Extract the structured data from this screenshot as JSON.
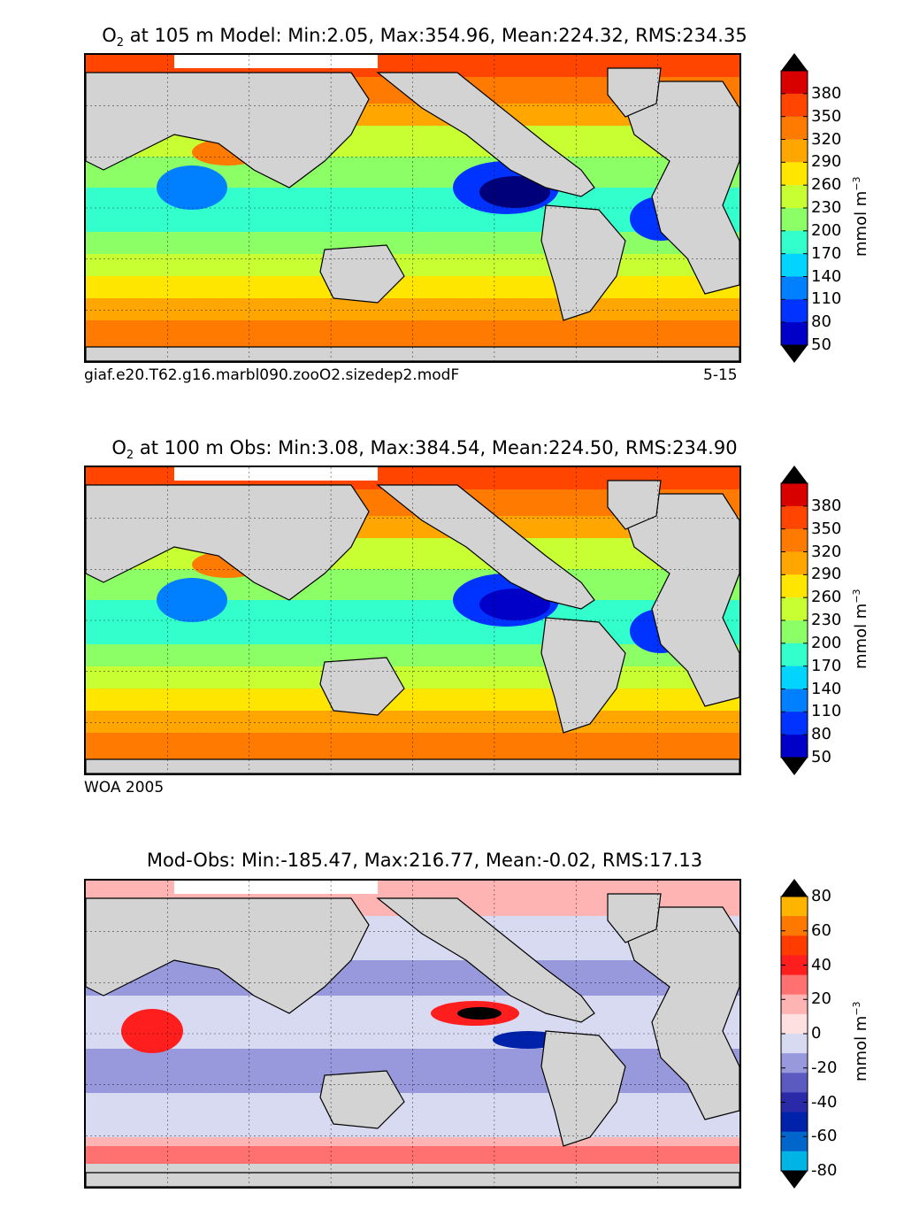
{
  "panels": [
    {
      "id": "model",
      "title_prefix": "O",
      "title_sub": "2",
      "title_rest": " at 105 m Model: Min:2.05, Max:354.96, Mean:224.32, RMS:234.35",
      "caption_left": "giaf.e20.T62.g16.marbl090.zooO2.sizedep2.modF",
      "caption_right": "5-15",
      "colorbar": {
        "ticks": [
          "380",
          "350",
          "320",
          "290",
          "260",
          "230",
          "200",
          "170",
          "140",
          "110",
          "80",
          "50"
        ],
        "unit_main": "mmol m",
        "unit_sup": "−3",
        "colors": [
          "#00007a",
          "#0000c8",
          "#0033ff",
          "#0080ff",
          "#00d4ff",
          "#33ffcc",
          "#8cff66",
          "#c8ff33",
          "#ffe600",
          "#ffa600",
          "#ff7a00",
          "#ff4500",
          "#d90000",
          "#800000"
        ]
      }
    },
    {
      "id": "obs",
      "title_prefix": "O",
      "title_sub": "2",
      "title_rest": " at 100 m Obs: Min:3.08, Max:384.54, Mean:224.50, RMS:234.90",
      "caption_left": "WOA 2005",
      "caption_right": "",
      "colorbar": {
        "ticks": [
          "380",
          "350",
          "320",
          "290",
          "260",
          "230",
          "200",
          "170",
          "140",
          "110",
          "80",
          "50"
        ],
        "unit_main": "mmol m",
        "unit_sup": "−3",
        "colors": [
          "#00007a",
          "#0000c8",
          "#0033ff",
          "#0080ff",
          "#00d4ff",
          "#33ffcc",
          "#8cff66",
          "#c8ff33",
          "#ffe600",
          "#ffa600",
          "#ff7a00",
          "#ff4500",
          "#d90000",
          "#800000"
        ]
      }
    },
    {
      "id": "diff",
      "title_prefix": "",
      "title_sub": "",
      "title_rest": "Mod-Obs: Min:-185.47, Max:216.77, Mean:-0.02, RMS:17.13",
      "caption_left": "",
      "caption_right": "",
      "colorbar": {
        "ticks": [
          "80",
          "60",
          "40",
          "20",
          "0",
          "-20",
          "-40",
          "-60",
          "-80"
        ],
        "unit_main": "mmol m",
        "unit_sup": "−3",
        "colors": [
          "#00ffff",
          "#00b4e6",
          "#0066cc",
          "#0022aa",
          "#2a2aa8",
          "#5a5ac0",
          "#9898dc",
          "#d8daf2",
          "#ffe0e0",
          "#ffb4b4",
          "#ff7070",
          "#ff1e1e",
          "#ff3c00",
          "#ff7800",
          "#ffb400",
          "#ffff00"
        ]
      }
    }
  ],
  "chart_data": [
    {
      "type": "heatmap",
      "title": "O2 at 105 m Model: Min:2.05, Max:354.96, Mean:224.32, RMS:234.35",
      "variable": "O2",
      "depth_m": 105,
      "source": "Model",
      "stats": {
        "min": 2.05,
        "max": 354.96,
        "mean": 224.32,
        "rms": 234.35
      },
      "levels": [
        50,
        80,
        110,
        140,
        170,
        200,
        230,
        260,
        290,
        320,
        350,
        380
      ],
      "extend": "both",
      "units": "mmol m^-3",
      "xlim": [
        -180,
        180
      ],
      "ylim": [
        -90,
        90
      ]
    },
    {
      "type": "heatmap",
      "title": "O2 at 100 m Obs: Min:3.08, Max:384.54, Mean:224.50, RMS:234.90",
      "variable": "O2",
      "depth_m": 100,
      "source": "Obs",
      "stats": {
        "min": 3.08,
        "max": 384.54,
        "mean": 224.5,
        "rms": 234.9
      },
      "levels": [
        50,
        80,
        110,
        140,
        170,
        200,
        230,
        260,
        290,
        320,
        350,
        380
      ],
      "extend": "both",
      "units": "mmol m^-3",
      "xlim": [
        -180,
        180
      ],
      "ylim": [
        -90,
        90
      ]
    },
    {
      "type": "heatmap",
      "title": "Mod-Obs: Min:-185.47, Max:216.77, Mean:-0.02, RMS:17.13",
      "variable": "O2 difference",
      "source": "Mod-Obs",
      "stats": {
        "min": -185.47,
        "max": 216.77,
        "mean": -0.02,
        "rms": 17.13
      },
      "levels": [
        -80,
        -70,
        -60,
        -50,
        -40,
        -30,
        -20,
        -10,
        0,
        10,
        20,
        30,
        40,
        50,
        60,
        70,
        80
      ],
      "extend": "both",
      "units": "mmol m^-3",
      "xlim": [
        -180,
        180
      ],
      "ylim": [
        -90,
        90
      ]
    }
  ]
}
